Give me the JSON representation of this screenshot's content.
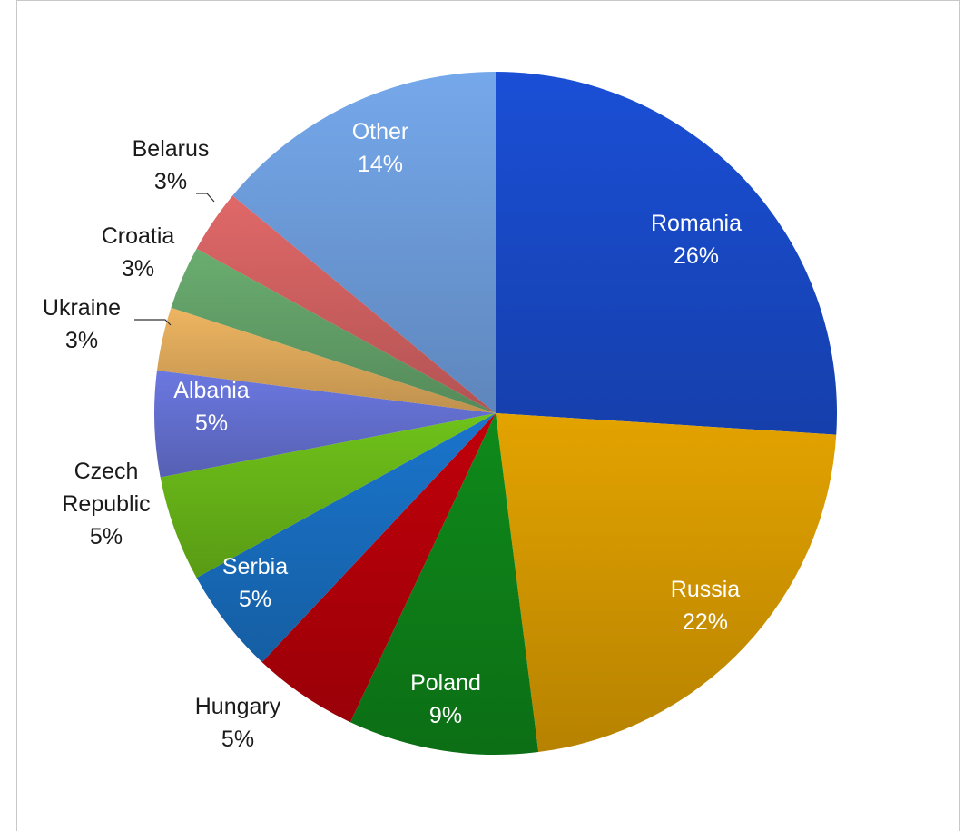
{
  "chart_data": {
    "type": "pie",
    "title": "",
    "slices": [
      {
        "label": "Romania",
        "value": 26,
        "pct_text": "26%",
        "color": "#1a4fd6"
      },
      {
        "label": "Russia",
        "value": 22,
        "pct_text": "22%",
        "color": "#e3a300"
      },
      {
        "label": "Poland",
        "value": 9,
        "pct_text": "9%",
        "color": "#0f8a1a"
      },
      {
        "label": "Hungary",
        "value": 5,
        "pct_text": "5%",
        "color": "#c0000a"
      },
      {
        "label": "Serbia",
        "value": 5,
        "pct_text": "5%",
        "color": "#1a75cc"
      },
      {
        "label": "Czech Republic",
        "label_lines": [
          "Czech",
          "Republic"
        ],
        "value": 5,
        "pct_text": "5%",
        "color": "#6fc21a"
      },
      {
        "label": "Albania",
        "value": 5,
        "pct_text": "5%",
        "color": "#6b78e0"
      },
      {
        "label": "Ukraine",
        "value": 3,
        "pct_text": "3%",
        "color": "#eeb561"
      },
      {
        "label": "Croatia",
        "value": 3,
        "pct_text": "3%",
        "color": "#6aad70"
      },
      {
        "label": "Belarus",
        "value": 3,
        "pct_text": "3%",
        "color": "#e06868"
      },
      {
        "label": "Other",
        "value": 14,
        "pct_text": "14%",
        "color": "#75a8eb"
      }
    ],
    "legend": "none"
  }
}
